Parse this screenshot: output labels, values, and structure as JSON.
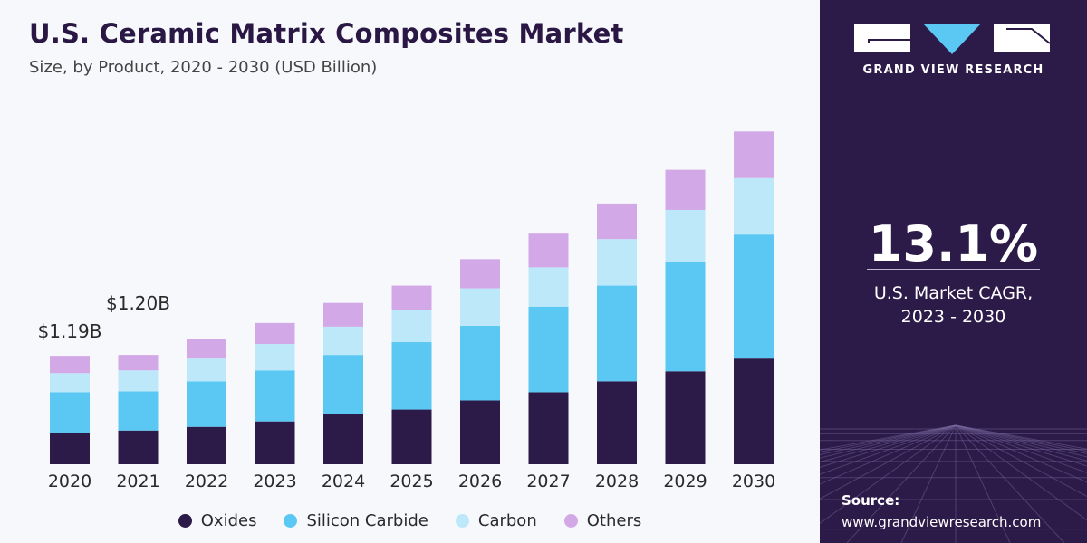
{
  "colors": {
    "oxides": "#2c1a49",
    "silicon_carbide": "#5bc8f4",
    "carbon": "#bde8f9",
    "others": "#d3a8e7",
    "panel": "#2c1a49"
  },
  "side": {
    "brand": "GRAND VIEW RESEARCH",
    "cagr_value": "13.1%",
    "cagr_label_line1": "U.S. Market CAGR,",
    "cagr_label_line2": "2023 - 2030",
    "source_label": "Source:",
    "source_url": "www.grandviewresearch.com"
  },
  "chart_data": {
    "type": "bar",
    "stacked": true,
    "title": "U.S. Ceramic Matrix Composites Market",
    "subtitle": "Size, by Product, 2020 - 2030 (USD Billion)",
    "xlabel": "",
    "ylabel": "",
    "ylim": [
      0,
      4.1
    ],
    "grid": false,
    "legend_position": "bottom",
    "categories": [
      "2020",
      "2021",
      "2022",
      "2023",
      "2024",
      "2025",
      "2026",
      "2027",
      "2028",
      "2029",
      "2030"
    ],
    "series": [
      {
        "name": "Oxides",
        "color": "#2c1a49",
        "values": [
          0.34,
          0.37,
          0.41,
          0.47,
          0.55,
          0.6,
          0.7,
          0.79,
          0.91,
          1.02,
          1.16
        ]
      },
      {
        "name": "Silicon Carbide",
        "color": "#5bc8f4",
        "values": [
          0.45,
          0.43,
          0.5,
          0.56,
          0.65,
          0.74,
          0.82,
          0.94,
          1.05,
          1.2,
          1.36
        ]
      },
      {
        "name": "Carbon",
        "color": "#bde8f9",
        "values": [
          0.21,
          0.23,
          0.25,
          0.29,
          0.31,
          0.35,
          0.41,
          0.43,
          0.51,
          0.57,
          0.62
        ]
      },
      {
        "name": "Others",
        "color": "#d3a8e7",
        "values": [
          0.19,
          0.17,
          0.21,
          0.23,
          0.26,
          0.27,
          0.32,
          0.37,
          0.39,
          0.44,
          0.51
        ]
      }
    ],
    "annotations": [
      {
        "category": "2020",
        "text": "$1.19B"
      },
      {
        "category": "2021",
        "text": "$1.20B"
      }
    ]
  }
}
